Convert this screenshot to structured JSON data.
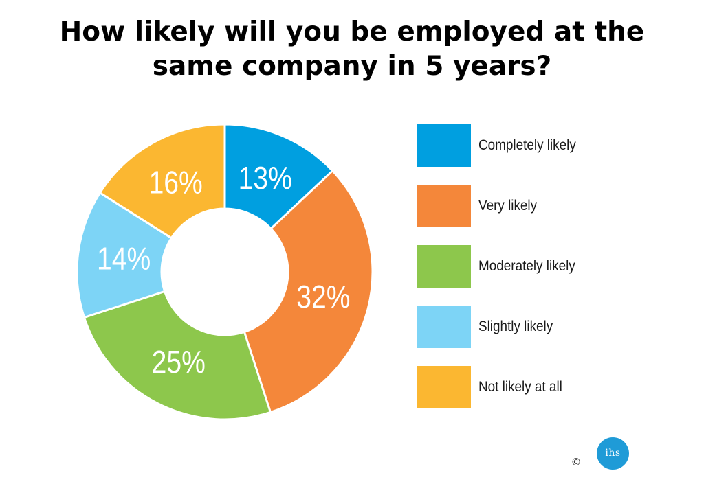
{
  "chart_data": {
    "type": "pie",
    "title": "How likely will you be employed at the same company in 5 years?",
    "title_lines": [
      "How likely will you be employed at the",
      "same company in 5 years?"
    ],
    "donut": true,
    "categories": [
      "Completely likely",
      "Very likely",
      "Moderately likely",
      "Slightly likely",
      "Not likely at all"
    ],
    "values": [
      13,
      32,
      25,
      14,
      16
    ],
    "value_labels": [
      "13%",
      "32%",
      "25%",
      "14%",
      "16%"
    ],
    "colors": [
      "#009fe0",
      "#f4873a",
      "#8dc74c",
      "#7dd4f6",
      "#fbb731"
    ],
    "start": "12 o'clock, clockwise",
    "legend_position": "right"
  },
  "footer": {
    "copyright_symbol": "©",
    "logo_text": "ihs"
  }
}
